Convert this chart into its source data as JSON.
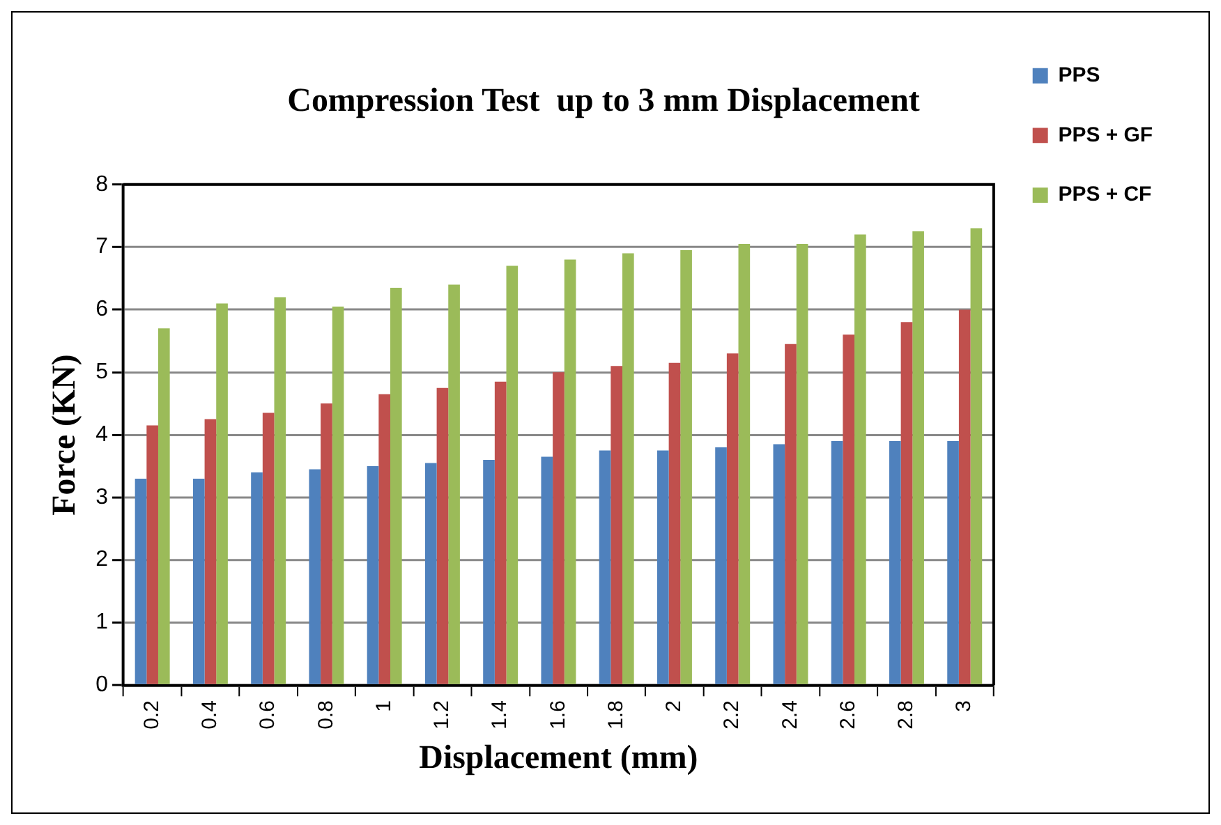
{
  "chart_data": {
    "type": "bar",
    "title": "Compression Test  up to 3 mm Displacement",
    "xlabel": "Displacement (mm)",
    "ylabel": "Force (KN)",
    "categories": [
      "0.2",
      "0.4",
      "0.6",
      "0.8",
      "1",
      "1.2",
      "1.4",
      "1.6",
      "1.8",
      "2",
      "2.2",
      "2.4",
      "2.6",
      "2.8",
      "3"
    ],
    "series": [
      {
        "name": "PPS",
        "color": "#4f81bd",
        "values": [
          3.3,
          3.3,
          3.4,
          3.45,
          3.5,
          3.55,
          3.6,
          3.65,
          3.75,
          3.75,
          3.8,
          3.85,
          3.9,
          3.9,
          3.9
        ]
      },
      {
        "name": "PPS + GF",
        "color": "#c0504d",
        "values": [
          4.15,
          4.25,
          4.35,
          4.5,
          4.65,
          4.75,
          4.85,
          5.0,
          5.1,
          5.15,
          5.3,
          5.45,
          5.6,
          5.8,
          6.0
        ]
      },
      {
        "name": "PPS + CF",
        "color": "#9bbb59",
        "values": [
          5.7,
          6.1,
          6.2,
          6.05,
          6.35,
          6.4,
          6.7,
          6.8,
          6.9,
          6.95,
          7.05,
          7.05,
          7.2,
          7.25,
          7.3
        ]
      }
    ],
    "ylim": [
      0,
      8
    ],
    "yticks": [
      0,
      1,
      2,
      3,
      4,
      5,
      6,
      7,
      8
    ],
    "grid": "y",
    "legend": "right"
  }
}
